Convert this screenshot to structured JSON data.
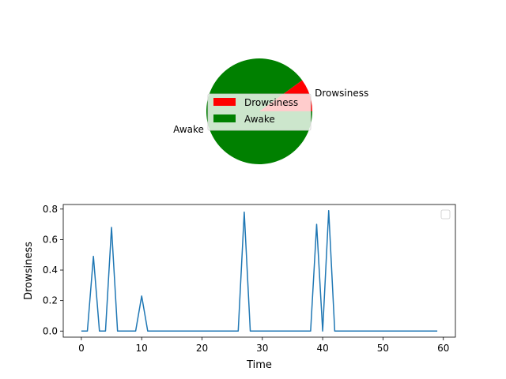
{
  "chart_data": [
    {
      "type": "pie",
      "slices": [
        {
          "label": "Drowsiness",
          "value": 0.1,
          "color": "#ff0000"
        },
        {
          "label": "Awake",
          "value": 0.9,
          "color": "#008000"
        }
      ],
      "legend": {
        "entries": [
          "Drowsiness",
          "Awake"
        ],
        "placement": "center"
      }
    },
    {
      "type": "line",
      "xlabel": "Time",
      "ylabel": "Drowsiness",
      "xlim": [
        -3.0,
        62.0
      ],
      "ylim": [
        -0.04,
        0.83
      ],
      "xticks": [
        0,
        10,
        20,
        30,
        40,
        50,
        60
      ],
      "yticks": [
        0.0,
        0.2,
        0.4,
        0.6,
        0.8
      ],
      "legend": {
        "placement": "top-right",
        "entries": []
      },
      "series": [
        {
          "color": "#1f77b4",
          "x": [
            0,
            1,
            2,
            3,
            4,
            5,
            6,
            7,
            8,
            9,
            10,
            11,
            12,
            13,
            14,
            15,
            16,
            17,
            18,
            19,
            20,
            21,
            22,
            23,
            24,
            25,
            26,
            27,
            28,
            29,
            30,
            31,
            32,
            33,
            34,
            35,
            36,
            37,
            38,
            39,
            40,
            41,
            42,
            43,
            44,
            45,
            46,
            47,
            48,
            49,
            50,
            51,
            52,
            53,
            54,
            55,
            56,
            57,
            58,
            59
          ],
          "y": [
            0,
            0,
            0.49,
            0,
            0,
            0.68,
            0,
            0,
            0,
            0,
            0.23,
            0,
            0,
            0,
            0,
            0,
            0,
            0,
            0,
            0,
            0,
            0,
            0,
            0,
            0,
            0,
            0,
            0.78,
            0,
            0,
            0,
            0,
            0,
            0,
            0,
            0,
            0,
            0,
            0,
            0.7,
            0,
            0.79,
            0,
            0,
            0,
            0,
            0,
            0,
            0,
            0,
            0,
            0,
            0,
            0,
            0,
            0,
            0,
            0,
            0,
            0
          ]
        }
      ]
    }
  ]
}
